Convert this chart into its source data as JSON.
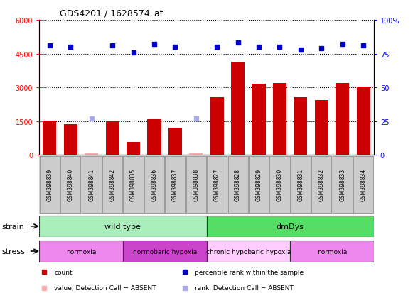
{
  "title": "GDS4201 / 1628574_at",
  "samples": [
    "GSM398839",
    "GSM398840",
    "GSM398841",
    "GSM398842",
    "GSM398835",
    "GSM398836",
    "GSM398837",
    "GSM398838",
    "GSM398827",
    "GSM398828",
    "GSM398829",
    "GSM398830",
    "GSM398831",
    "GSM398832",
    "GSM398833",
    "GSM398834"
  ],
  "bar_values": [
    1520,
    1380,
    90,
    1500,
    580,
    1580,
    1200,
    90,
    2550,
    4150,
    3150,
    3200,
    2550,
    2450,
    3200,
    3050
  ],
  "bar_absent": [
    false,
    false,
    true,
    false,
    false,
    false,
    false,
    true,
    false,
    false,
    false,
    false,
    false,
    false,
    false,
    false
  ],
  "rank_values": [
    81,
    80,
    27,
    81,
    76,
    82,
    80,
    27,
    80,
    83,
    80,
    80,
    78,
    79,
    82,
    81
  ],
  "rank_absent": [
    false,
    false,
    true,
    false,
    false,
    false,
    false,
    true,
    false,
    false,
    false,
    false,
    false,
    false,
    false,
    false
  ],
  "bar_color_present": "#cc0000",
  "bar_color_absent": "#ffaaaa",
  "rank_color_present": "#0000cc",
  "rank_color_absent": "#aaaaee",
  "ylim_left": [
    0,
    6000
  ],
  "ylim_right": [
    0,
    100
  ],
  "yticks_left": [
    0,
    1500,
    3000,
    4500,
    6000
  ],
  "yticks_right": [
    0,
    25,
    50,
    75,
    100
  ],
  "plot_bg_color": "#ffffff",
  "background_color": "#ffffff",
  "strain_groups": [
    {
      "label": "wild type",
      "start": 0,
      "end": 8,
      "color": "#aaeebb"
    },
    {
      "label": "dmDys",
      "start": 8,
      "end": 16,
      "color": "#55dd66"
    }
  ],
  "stress_groups": [
    {
      "label": "normoxia",
      "start": 0,
      "end": 4,
      "color": "#ee88ee"
    },
    {
      "label": "normobaric hypoxia",
      "start": 4,
      "end": 8,
      "color": "#cc44cc"
    },
    {
      "label": "chronic hypobaric hypoxia",
      "start": 8,
      "end": 12,
      "color": "#ffccff"
    },
    {
      "label": "normoxia",
      "start": 12,
      "end": 16,
      "color": "#ee88ee"
    }
  ],
  "legend_items": [
    {
      "label": "count",
      "color": "#cc0000"
    },
    {
      "label": "percentile rank within the sample",
      "color": "#0000cc"
    },
    {
      "label": "value, Detection Call = ABSENT",
      "color": "#ffaaaa"
    },
    {
      "label": "rank, Detection Call = ABSENT",
      "color": "#aaaaee"
    }
  ]
}
